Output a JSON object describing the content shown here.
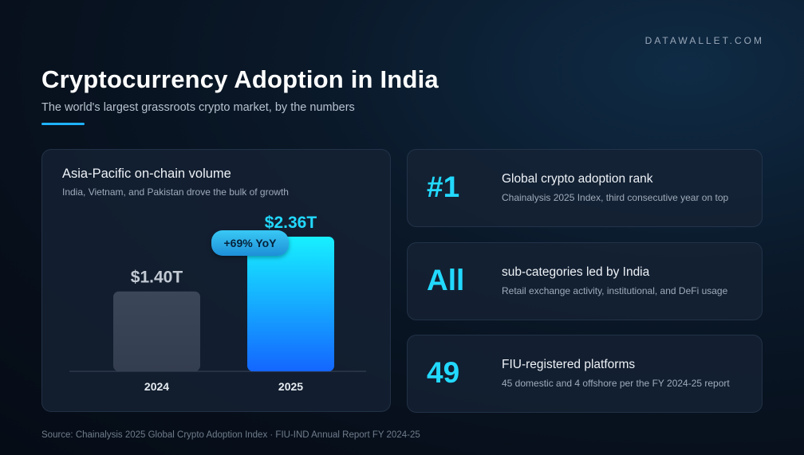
{
  "brand": "DATAWALLET.COM",
  "title": "Cryptocurrency Adoption in India",
  "subtitle": "The world's largest grassroots crypto market, by the numbers",
  "chart_card": {
    "title": "Asia-Pacific on-chain volume",
    "subtitle": "India, Vietnam, and Pakistan drove the bulk of growth",
    "growth_badge": "+69% YoY"
  },
  "chart_data": {
    "type": "bar",
    "categories": [
      "2024",
      "2025"
    ],
    "values": [
      1.4,
      2.36
    ],
    "data_labels": [
      "$1.40T",
      "$2.36T"
    ],
    "title": "Asia-Pacific on-chain volume",
    "subtitle": "India, Vietnam, and Pakistan drove the bulk of growth",
    "xlabel": "",
    "ylabel": "",
    "ylim": [
      0,
      2.36
    ],
    "grid": false,
    "colors": [
      "#3a4658",
      "#1ab0ff"
    ]
  },
  "stats": [
    {
      "number": "#1",
      "label": "Global crypto adoption rank",
      "desc": "Chainalysis 2025 Index, third consecutive year on top"
    },
    {
      "number": "All",
      "label": "sub-categories led by India",
      "desc": "Retail exchange activity, institutional, and DeFi usage"
    },
    {
      "number": "49",
      "label": "FIU-registered platforms",
      "desc": "45 domestic and 4 offshore per the FY 2024-25 report"
    }
  ],
  "source": "Source: Chainalysis 2025 Global Crypto Adoption Index · FIU-IND Annual Report FY 2024-25",
  "colors": {
    "accent": "#22d9ff",
    "background": "#070f1b",
    "card": "#162234"
  }
}
